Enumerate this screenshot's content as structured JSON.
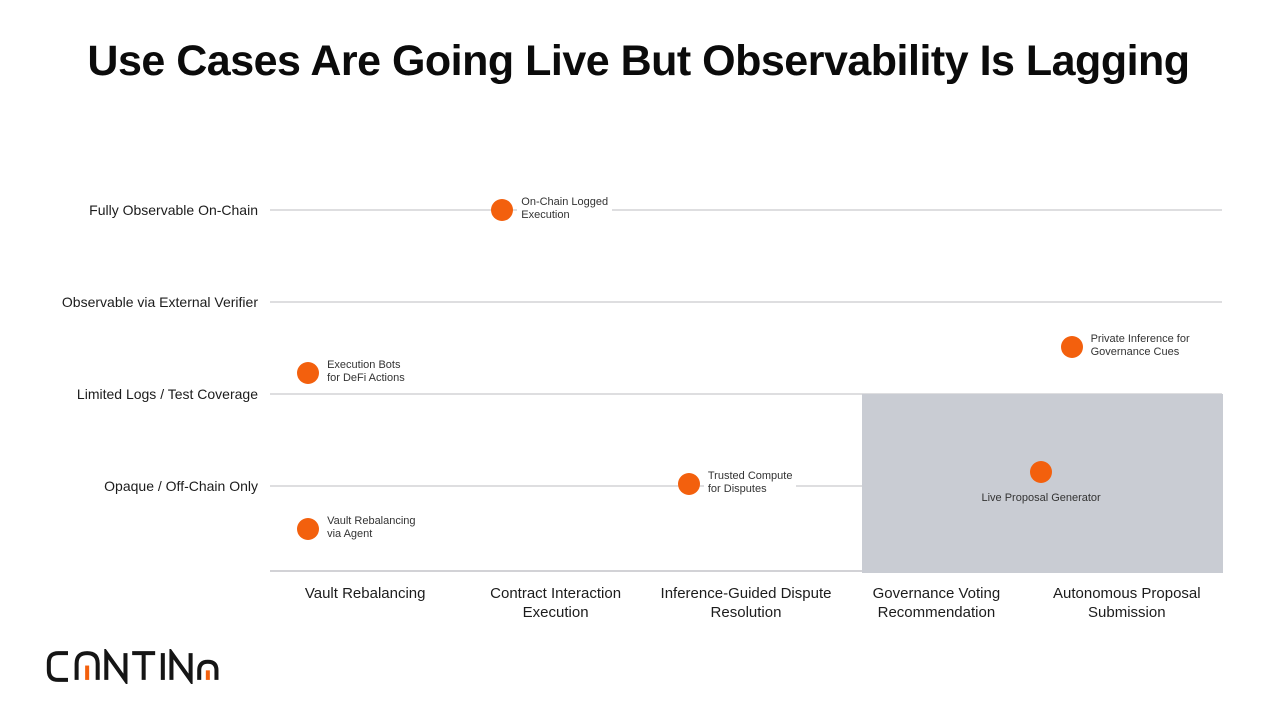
{
  "page": {
    "background": "#ffffff"
  },
  "brand": {
    "logo_text": "CANTINA",
    "logo_black": "#151515",
    "logo_orange": "#F3600D"
  },
  "chart_data": {
    "type": "scatter",
    "title": "Use Cases Are Going Live But Observability Is Lagging",
    "x_categories": [
      "Vault Rebalancing",
      "Contract Interaction Execution",
      "Inference-Guided Dispute Resolution",
      "Governance Voting Recommendation",
      "Autonomous Proposal Submission"
    ],
    "y_levels": [
      {
        "value": 4,
        "label": "Fully Observable On-Chain"
      },
      {
        "value": 3,
        "label": "Observable via External Verifier"
      },
      {
        "value": 2,
        "label": "Limited Logs / Test Coverage"
      },
      {
        "value": 1,
        "label": "Opaque / Off-Chain Only"
      }
    ],
    "points": [
      {
        "label_lines": [
          "On-Chain Logged",
          "Execution"
        ],
        "x_unit": 1.22,
        "y_level": 4.0,
        "label_pos": "right"
      },
      {
        "label_lines": [
          "Execution Bots",
          "for DeFi Actions"
        ],
        "x_unit": 0.2,
        "y_level": 2.23,
        "label_pos": "right"
      },
      {
        "label_lines": [
          "Private Inference for",
          "Governance Cues"
        ],
        "x_unit": 4.21,
        "y_level": 2.51,
        "label_pos": "right"
      },
      {
        "label_lines": [
          "Trusted Compute",
          "for Disputes"
        ],
        "x_unit": 2.2,
        "y_level": 1.02,
        "label_pos": "right"
      },
      {
        "label_lines": [
          "Vault Rebalancing",
          "via Agent"
        ],
        "x_unit": 0.2,
        "y_level": 0.53,
        "label_pos": "right"
      },
      {
        "label_lines": [
          "Live Proposal Generator"
        ],
        "x_unit": 4.05,
        "y_level": 1.15,
        "label_pos": "below"
      }
    ],
    "highlight_region": {
      "x_start_unit": 3.11,
      "y_top_level": 2.0,
      "color": "#C9CCD3"
    },
    "dot_color": "#F3600D",
    "gridline_color": "#DEDEE0",
    "axis_line_color": "#D2D2D6",
    "grid": true,
    "legend_position": "none"
  }
}
